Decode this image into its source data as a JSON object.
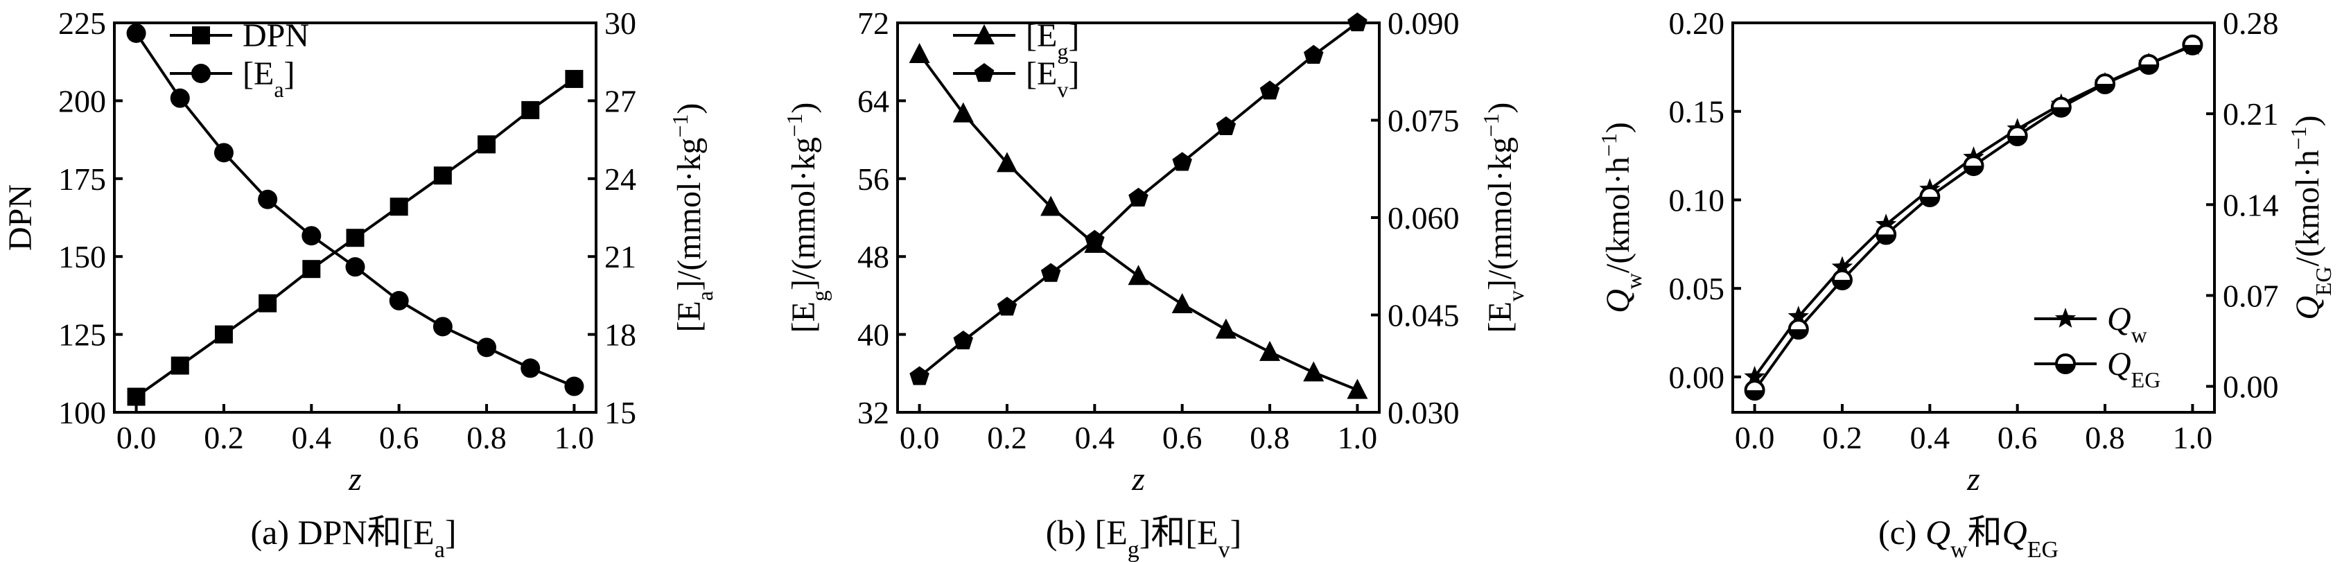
{
  "chart_data": [
    {
      "type": "line",
      "panel": "a",
      "caption": {
        "prefix": "(a) DPN和[E",
        "sub": "a",
        "suffix": "]"
      },
      "xlabel": "z",
      "x": [
        0.0,
        0.1,
        0.2,
        0.3,
        0.4,
        0.5,
        0.6,
        0.7,
        0.8,
        0.9,
        1.0
      ],
      "xlim": [
        -0.05,
        1.05
      ],
      "xticks": [
        "0.0",
        "0.2",
        "0.4",
        "0.6",
        "0.8",
        "1.0"
      ],
      "left_axis": {
        "label": {
          "main": "DPN",
          "sub": "",
          "suffix": ""
        },
        "ylim": [
          100,
          225
        ],
        "ticks": [
          "100",
          "125",
          "150",
          "175",
          "200",
          "225"
        ]
      },
      "right_axis": {
        "label": {
          "main": "[E",
          "sub": "a",
          "suffix": "]/(mmol·kg",
          "sup": "−1",
          "end": ")"
        },
        "ylim": [
          15,
          30
        ],
        "ticks": [
          "15",
          "18",
          "21",
          "24",
          "27",
          "30"
        ]
      },
      "series": [
        {
          "name": "DPN",
          "marker": "square",
          "axis": "left",
          "values": [
            105,
            115,
            125,
            135,
            146,
            156,
            166,
            176,
            186,
            197,
            207
          ]
        },
        {
          "name": "[E",
          "name_sub": "a",
          "name_suffix": "]",
          "marker": "circle",
          "axis": "right",
          "values": [
            29.6,
            27.1,
            25.0,
            23.2,
            21.8,
            20.6,
            19.3,
            18.3,
            17.5,
            16.7,
            16.0
          ]
        }
      ],
      "legend": "top-left"
    },
    {
      "type": "line",
      "panel": "b",
      "caption": {
        "prefix": "(b) [E",
        "sub": "g",
        "mid": "]和[E",
        "sub2": "v",
        "suffix": "]"
      },
      "xlabel": "z",
      "x": [
        0.0,
        0.1,
        0.2,
        0.3,
        0.4,
        0.5,
        0.6,
        0.7,
        0.8,
        0.9,
        1.0
      ],
      "xlim": [
        -0.05,
        1.05
      ],
      "xticks": [
        "0.0",
        "0.2",
        "0.4",
        "0.6",
        "0.8",
        "1.0"
      ],
      "left_axis": {
        "label": {
          "main": "[E",
          "sub": "g",
          "suffix": "]/(mmol·kg",
          "sup": "−1",
          "end": ")"
        },
        "ylim": [
          32,
          72
        ],
        "ticks": [
          "32",
          "40",
          "48",
          "56",
          "64",
          "72"
        ]
      },
      "right_axis": {
        "label": {
          "main": "[E",
          "sub": "v",
          "suffix": "]/(mmol·kg",
          "sup": "−1",
          "end": ")"
        },
        "ylim": [
          0.03,
          0.09
        ],
        "ticks": [
          "0.030",
          "0.045",
          "0.060",
          "0.075",
          "0.090"
        ]
      },
      "series": [
        {
          "name": "[E",
          "name_sub": "g",
          "name_suffix": "]",
          "marker": "triangle",
          "axis": "left",
          "values": [
            68.8,
            62.7,
            57.6,
            53.1,
            49.3,
            46.0,
            43.1,
            40.5,
            38.2,
            36.1,
            34.3
          ]
        },
        {
          "name": "[E",
          "name_sub": "v",
          "name_suffix": "]",
          "marker": "pentagon",
          "axis": "right",
          "values": [
            0.0355,
            0.041,
            0.0462,
            0.0514,
            0.0565,
            0.063,
            0.0685,
            0.074,
            0.0795,
            0.085,
            0.09
          ]
        }
      ],
      "legend": "top-left"
    },
    {
      "type": "line",
      "panel": "c",
      "caption": {
        "prefix": "(c) ",
        "q1": "Q",
        "sub": "w",
        "mid": "和",
        "q2": "Q",
        "sub2": "EG"
      },
      "xlabel": "z",
      "x": [
        0.0,
        0.1,
        0.2,
        0.3,
        0.4,
        0.5,
        0.6,
        0.7,
        0.8,
        0.9,
        1.0
      ],
      "xlim": [
        -0.05,
        1.05
      ],
      "xticks": [
        "0.0",
        "0.2",
        "0.4",
        "0.6",
        "0.8",
        "1.0"
      ],
      "left_axis": {
        "label": {
          "main": "Q",
          "sub": "w",
          "suffix": "/(kmol·h",
          "sup": "−1",
          "end": ")"
        },
        "ylim": [
          -0.02,
          0.2
        ],
        "ticks": [
          "0.00",
          "0.05",
          "0.10",
          "0.15",
          "0.20"
        ]
      },
      "right_axis": {
        "label": {
          "main": "Q",
          "sub": "EG",
          "suffix": "/(kmol·h",
          "sup": "−1",
          "end": ")"
        },
        "ylim": [
          -0.02,
          0.28
        ],
        "ticks": [
          "0.00",
          "0.07",
          "0.14",
          "0.21",
          "0.28"
        ]
      },
      "series": [
        {
          "name": "Q",
          "name_sub": "w",
          "marker": "star",
          "axis": "left",
          "values": [
            0.0,
            0.034,
            0.062,
            0.086,
            0.106,
            0.124,
            0.14,
            0.154,
            0.166,
            0.177,
            0.187
          ]
        },
        {
          "name": "Q",
          "name_sub": "EG",
          "marker": "circle-half",
          "axis": "right",
          "values": [
            -0.003,
            0.044,
            0.082,
            0.117,
            0.146,
            0.17,
            0.193,
            0.215,
            0.233,
            0.248,
            0.263
          ]
        }
      ],
      "legend": "bottom-right"
    }
  ]
}
